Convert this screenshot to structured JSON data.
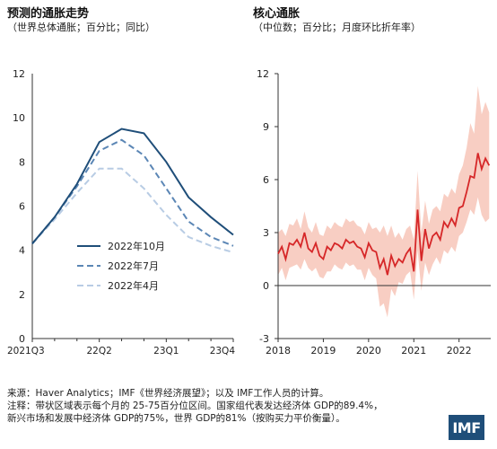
{
  "left": {
    "title": "预测的通胀走势",
    "subtitle": "（世界总体通胀；百分比；同比）"
  },
  "right": {
    "title": "核心通胀",
    "subtitle": "（中位数；百分比；月度环比折年率）"
  },
  "notes": {
    "source": "来源：Haver Analytics；IMF《世界经济展望》；以及 IMF工作人员的计算。",
    "note1": "注释：带状区域表示每个月的 25-75百分位区间。国家组代表发达经济体 GDP的89.4%，",
    "note2": "新兴市场和发展中经济体 GDP的75%，世界 GDP的81%（按购买力平价衡量）。"
  },
  "logo": {
    "text": "IMF"
  },
  "chart_data": [
    {
      "type": "line",
      "title": "预测的通胀走势",
      "subtitle": "（世界总体通胀；百分比；同比）",
      "x_ticks": [
        "2021Q3",
        "22Q2",
        "23Q1",
        "23Q4"
      ],
      "x": [
        0,
        1,
        2,
        3,
        4,
        5,
        6,
        7,
        8,
        9
      ],
      "xlim": [
        0,
        9
      ],
      "ylim": [
        0,
        12
      ],
      "y_ticks": [
        0,
        2,
        4,
        6,
        8,
        10,
        12
      ],
      "legend_position": "lower-left",
      "series": [
        {
          "name": "2022年10月",
          "color": "#1f4e79",
          "style": "solid",
          "values": [
            4.3,
            5.5,
            7.0,
            8.9,
            9.5,
            9.3,
            8.0,
            6.4,
            5.5,
            4.7
          ]
        },
        {
          "name": "2022年7月",
          "color": "#5b86b5",
          "style": "dashed",
          "values": [
            4.3,
            5.5,
            6.9,
            8.5,
            9.0,
            8.3,
            6.8,
            5.3,
            4.6,
            4.2
          ]
        },
        {
          "name": "2022年4月",
          "color": "#b8cce4",
          "style": "dashed",
          "values": [
            4.3,
            5.4,
            6.6,
            7.7,
            7.7,
            6.8,
            5.6,
            4.6,
            4.2,
            3.9
          ]
        }
      ]
    },
    {
      "type": "area",
      "title": "核心通胀",
      "subtitle": "（中位数；百分比；月度环比折年率）",
      "x_ticks": [
        "2018",
        "2019",
        "2020",
        "2021",
        "2022"
      ],
      "xlim": [
        2018.0,
        2022.7
      ],
      "ylim": [
        -3,
        12
      ],
      "y_ticks": [
        -3,
        0,
        3,
        6,
        9,
        12
      ],
      "band_color": "#f7c6b8",
      "line_color": "#d62728",
      "monthly_start": 2018.0,
      "median": [
        1.8,
        2.2,
        1.5,
        2.4,
        2.3,
        2.6,
        2.2,
        3.0,
        2.1,
        1.9,
        2.4,
        1.7,
        1.5,
        2.2,
        2.0,
        2.4,
        2.3,
        2.1,
        2.6,
        2.4,
        2.5,
        2.2,
        2.1,
        1.6,
        2.4,
        2.0,
        1.9,
        1.0,
        1.5,
        0.6,
        1.7,
        1.1,
        1.5,
        1.3,
        1.8,
        2.1,
        0.8,
        4.3,
        1.4,
        3.2,
        2.1,
        2.8,
        3.0,
        2.6,
        3.6,
        3.3,
        3.8,
        3.4,
        4.4,
        4.5,
        5.3,
        6.2,
        6.1,
        7.5,
        6.6,
        7.2,
        6.8
      ],
      "p25": [
        0.6,
        1.0,
        0.3,
        1.0,
        1.1,
        1.2,
        0.9,
        1.5,
        1.0,
        0.8,
        1.0,
        0.5,
        0.4,
        0.8,
        0.8,
        1.2,
        1.0,
        0.9,
        1.3,
        1.1,
        1.2,
        0.9,
        0.9,
        0.3,
        1.0,
        0.6,
        0.4,
        -1.2,
        -1.0,
        -1.8,
        -0.2,
        -0.6,
        0.2,
        0.1,
        0.6,
        0.8,
        -0.8,
        2.0,
        -0.3,
        1.3,
        0.6,
        1.2,
        1.6,
        1.2,
        2.0,
        1.8,
        2.2,
        1.9,
        2.8,
        3.0,
        3.6,
        4.3,
        4.0,
        5.0,
        4.0,
        3.6,
        3.8
      ],
      "p75": [
        3.0,
        3.2,
        2.8,
        3.5,
        3.4,
        3.8,
        3.2,
        4.2,
        3.3,
        3.0,
        3.6,
        2.9,
        2.8,
        3.4,
        3.2,
        3.6,
        3.4,
        3.3,
        3.8,
        3.6,
        3.7,
        3.4,
        3.3,
        2.9,
        3.6,
        3.2,
        3.3,
        3.0,
        3.4,
        2.8,
        3.4,
        2.7,
        3.0,
        2.6,
        3.2,
        3.4,
        2.6,
        6.5,
        3.0,
        4.8,
        3.5,
        4.3,
        4.5,
        4.2,
        5.2,
        5.0,
        5.5,
        5.2,
        6.3,
        6.8,
        7.8,
        9.2,
        8.6,
        11.3,
        9.7,
        10.4,
        9.8
      ]
    }
  ]
}
